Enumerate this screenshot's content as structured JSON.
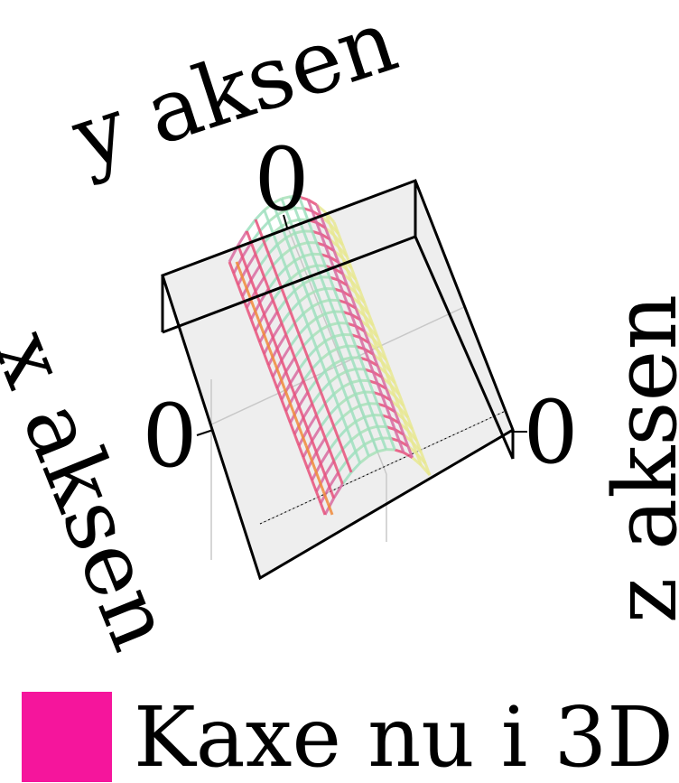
{
  "chart_data": {
    "type": "surface",
    "title": "",
    "xlabel": "x aksen",
    "ylabel": "y aksen",
    "zlabel": "z aksen",
    "ticks": {
      "x": [
        "0"
      ],
      "y": [
        "0"
      ],
      "z": [
        "0"
      ]
    },
    "grid": true,
    "legend": {
      "position": "bottom",
      "entries": [
        {
          "label": "Kaxe nu i 3D",
          "color": "#f5159c"
        }
      ]
    },
    "series": [
      {
        "name": "Kaxe nu i 3D",
        "surface": "ridge"
      }
    ],
    "colors": {
      "accent": "#f5159c",
      "surface_palette": [
        "#e8e890",
        "#a8e0b8",
        "#9edfbe",
        "#e8507a",
        "#d86aa0",
        "#f08a3a"
      ],
      "pane": "#eeeeee",
      "grid": "#c8c8c8"
    }
  }
}
